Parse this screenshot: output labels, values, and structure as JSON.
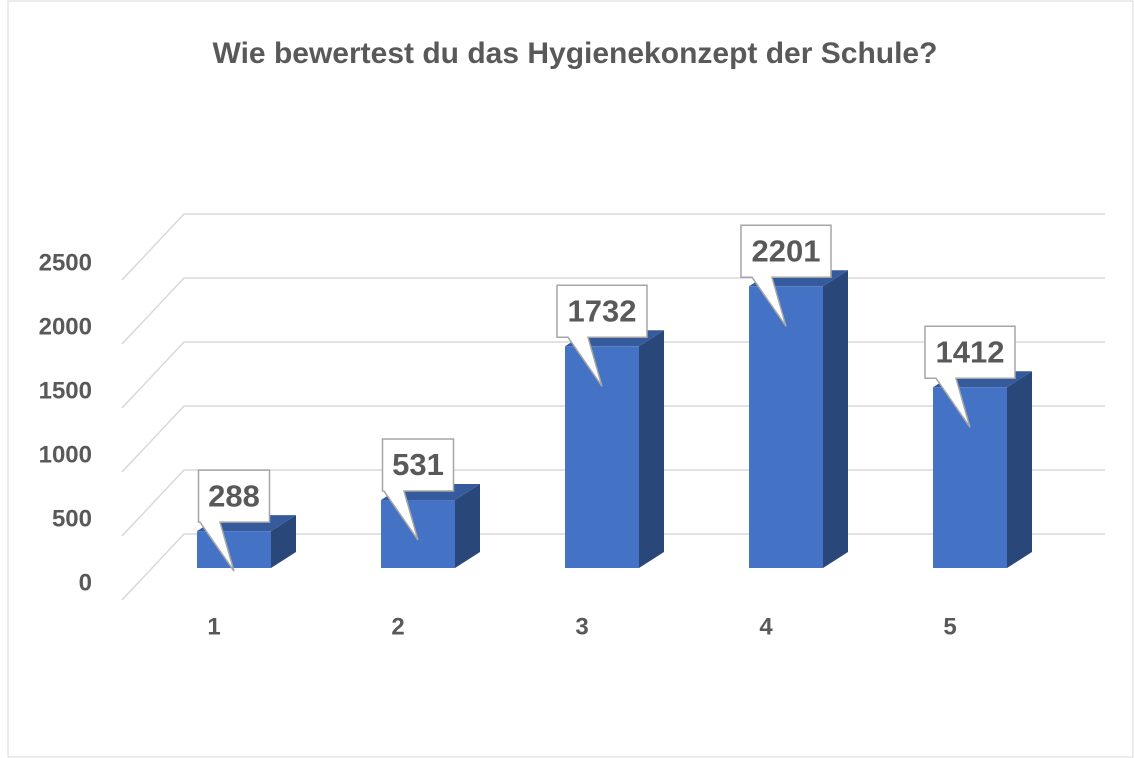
{
  "chart_data": {
    "type": "bar3d",
    "title": "Wie bewertest du das Hygienekonzept der Schule?",
    "categories": [
      "1",
      "2",
      "3",
      "4",
      "5"
    ],
    "values": [
      288,
      531,
      1732,
      2201,
      1412
    ],
    "color": "#4472c4",
    "ylim": [
      0,
      2500
    ],
    "yticks": [
      0,
      500,
      1000,
      1500,
      2000,
      2500
    ],
    "grid": true
  }
}
